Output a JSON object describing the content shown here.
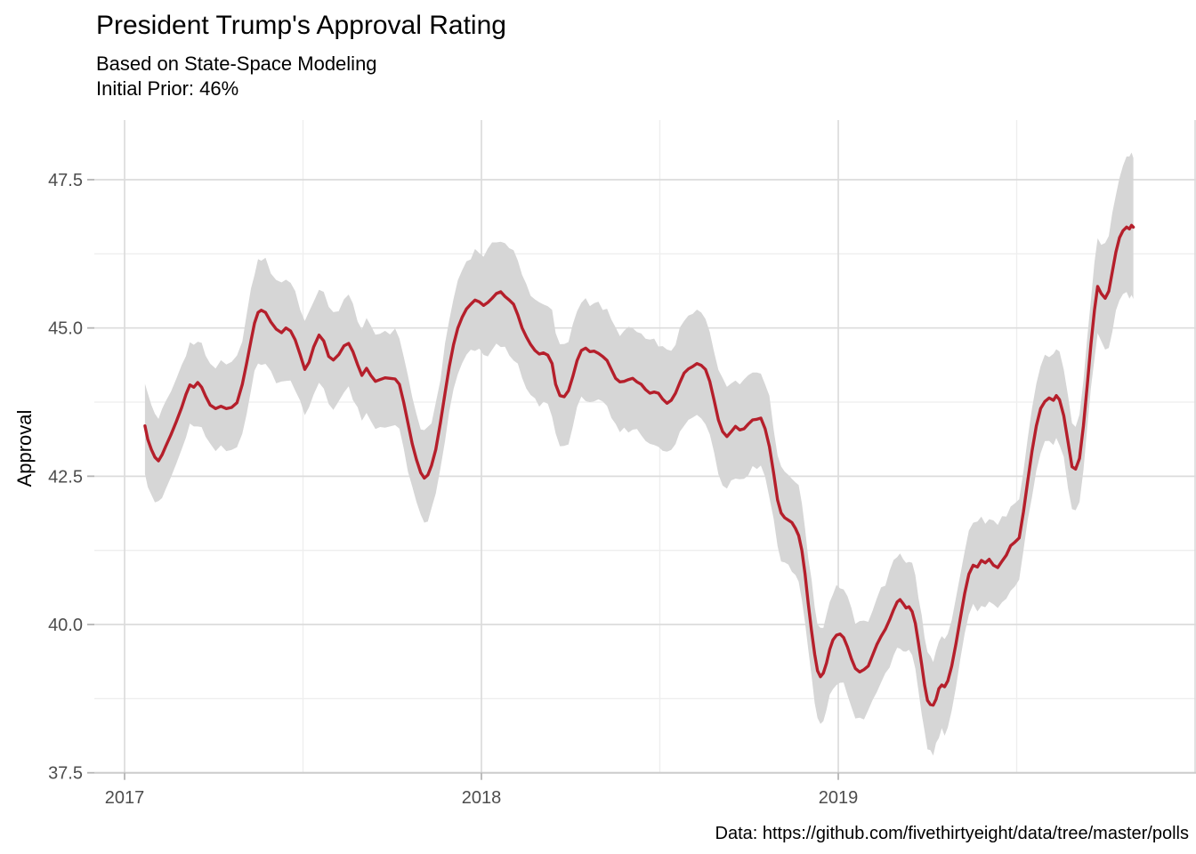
{
  "header": {
    "title": "President Trump's Approval Rating",
    "subtitle_line1": "Based on State-Space Modeling",
    "subtitle_line2": "Initial Prior: 46%"
  },
  "caption": "Data: https://github.com/fivethirtyeight/data/tree/master/polls",
  "colors": {
    "line": "#b51f2b",
    "ribbon": "#d6d6d6",
    "grid_major": "#dcdcdc",
    "grid_minor": "#eeeeee",
    "axis_line": "#cccccc",
    "tick_mark": "#b5b5b5",
    "tick_label": "#4d4d4d",
    "text": "#000000"
  },
  "chart_data": {
    "type": "line",
    "title": "President Trump's Approval Rating",
    "subtitle": "Based on State-Space Modeling — Initial Prior: 46%",
    "xlabel": "",
    "ylabel": "Approval",
    "grid": true,
    "legend": false,
    "x_axis": {
      "tick_labels": [
        "2017",
        "2018",
        "2019"
      ],
      "tick_years": [
        2017,
        2018,
        2019
      ],
      "grid_major_years": [
        2017,
        2018,
        2019,
        2020
      ],
      "grid_minor_years": [
        2017.5,
        2018.5,
        2019.5
      ],
      "range_shown": [
        2016.915,
        2020.003
      ]
    },
    "y_axis": {
      "tick_labels": [
        "37.5",
        "40.0",
        "42.5",
        "45.0",
        "47.5"
      ],
      "ticks": [
        37.5,
        40.0,
        42.5,
        45.0,
        47.5
      ],
      "grid_minor": [
        38.75,
        41.25,
        43.75,
        46.25
      ],
      "range_shown": [
        37.5,
        48.5
      ]
    },
    "series": [
      {
        "name": "posterior-mean-approval",
        "points": [
          [
            2017.057,
            43.35
          ],
          [
            2017.065,
            43.12
          ],
          [
            2017.075,
            42.95
          ],
          [
            2017.085,
            42.82
          ],
          [
            2017.095,
            42.76
          ],
          [
            2017.105,
            42.86
          ],
          [
            2017.115,
            43.0
          ],
          [
            2017.13,
            43.2
          ],
          [
            2017.145,
            43.42
          ],
          [
            2017.16,
            43.66
          ],
          [
            2017.172,
            43.88
          ],
          [
            2017.183,
            44.04
          ],
          [
            2017.194,
            44.0
          ],
          [
            2017.205,
            44.08
          ],
          [
            2017.216,
            44.0
          ],
          [
            2017.227,
            43.85
          ],
          [
            2017.24,
            43.7
          ],
          [
            2017.255,
            43.64
          ],
          [
            2017.27,
            43.68
          ],
          [
            2017.285,
            43.64
          ],
          [
            2017.3,
            43.66
          ],
          [
            2017.315,
            43.74
          ],
          [
            2017.33,
            44.05
          ],
          [
            2017.342,
            44.4
          ],
          [
            2017.354,
            44.78
          ],
          [
            2017.364,
            45.08
          ],
          [
            2017.374,
            45.26
          ],
          [
            2017.383,
            45.3
          ],
          [
            2017.395,
            45.26
          ],
          [
            2017.41,
            45.1
          ],
          [
            2017.425,
            44.98
          ],
          [
            2017.44,
            44.92
          ],
          [
            2017.452,
            45.0
          ],
          [
            2017.465,
            44.95
          ],
          [
            2017.478,
            44.8
          ],
          [
            2017.492,
            44.55
          ],
          [
            2017.505,
            44.3
          ],
          [
            2017.517,
            44.42
          ],
          [
            2017.53,
            44.68
          ],
          [
            2017.545,
            44.88
          ],
          [
            2017.558,
            44.78
          ],
          [
            2017.572,
            44.52
          ],
          [
            2017.585,
            44.46
          ],
          [
            2017.6,
            44.55
          ],
          [
            2017.615,
            44.7
          ],
          [
            2017.628,
            44.74
          ],
          [
            2017.64,
            44.6
          ],
          [
            2017.653,
            44.38
          ],
          [
            2017.665,
            44.2
          ],
          [
            2017.678,
            44.32
          ],
          [
            2017.69,
            44.2
          ],
          [
            2017.703,
            44.1
          ],
          [
            2017.716,
            44.13
          ],
          [
            2017.73,
            44.16
          ],
          [
            2017.744,
            44.15
          ],
          [
            2017.758,
            44.14
          ],
          [
            2017.77,
            44.05
          ],
          [
            2017.782,
            43.75
          ],
          [
            2017.794,
            43.4
          ],
          [
            2017.806,
            43.05
          ],
          [
            2017.818,
            42.78
          ],
          [
            2017.83,
            42.56
          ],
          [
            2017.84,
            42.47
          ],
          [
            2017.85,
            42.52
          ],
          [
            2017.86,
            42.68
          ],
          [
            2017.872,
            42.95
          ],
          [
            2017.885,
            43.4
          ],
          [
            2017.898,
            43.9
          ],
          [
            2017.91,
            44.35
          ],
          [
            2017.922,
            44.72
          ],
          [
            2017.934,
            45.0
          ],
          [
            2017.946,
            45.18
          ],
          [
            2017.958,
            45.32
          ],
          [
            2017.97,
            45.4
          ],
          [
            2017.982,
            45.47
          ],
          [
            2017.994,
            45.44
          ],
          [
            2018.006,
            45.38
          ],
          [
            2018.018,
            45.43
          ],
          [
            2018.03,
            45.5
          ],
          [
            2018.042,
            45.58
          ],
          [
            2018.054,
            45.61
          ],
          [
            2018.066,
            45.53
          ],
          [
            2018.078,
            45.47
          ],
          [
            2018.09,
            45.4
          ],
          [
            2018.102,
            45.22
          ],
          [
            2018.114,
            45.0
          ],
          [
            2018.126,
            44.85
          ],
          [
            2018.138,
            44.72
          ],
          [
            2018.15,
            44.62
          ],
          [
            2018.162,
            44.56
          ],
          [
            2018.174,
            44.58
          ],
          [
            2018.186,
            44.54
          ],
          [
            2018.198,
            44.4
          ],
          [
            2018.208,
            44.05
          ],
          [
            2018.22,
            43.86
          ],
          [
            2018.232,
            43.84
          ],
          [
            2018.244,
            43.94
          ],
          [
            2018.256,
            44.18
          ],
          [
            2018.268,
            44.45
          ],
          [
            2018.28,
            44.62
          ],
          [
            2018.292,
            44.66
          ],
          [
            2018.304,
            44.6
          ],
          [
            2018.316,
            44.61
          ],
          [
            2018.328,
            44.57
          ],
          [
            2018.34,
            44.52
          ],
          [
            2018.352,
            44.45
          ],
          [
            2018.364,
            44.3
          ],
          [
            2018.376,
            44.15
          ],
          [
            2018.388,
            44.09
          ],
          [
            2018.4,
            44.1
          ],
          [
            2018.412,
            44.13
          ],
          [
            2018.424,
            44.15
          ],
          [
            2018.436,
            44.09
          ],
          [
            2018.448,
            44.05
          ],
          [
            2018.46,
            43.96
          ],
          [
            2018.472,
            43.9
          ],
          [
            2018.484,
            43.92
          ],
          [
            2018.496,
            43.9
          ],
          [
            2018.508,
            43.8
          ],
          [
            2018.52,
            43.73
          ],
          [
            2018.532,
            43.78
          ],
          [
            2018.544,
            43.9
          ],
          [
            2018.556,
            44.08
          ],
          [
            2018.568,
            44.24
          ],
          [
            2018.58,
            44.31
          ],
          [
            2018.592,
            44.35
          ],
          [
            2018.604,
            44.4
          ],
          [
            2018.616,
            44.37
          ],
          [
            2018.628,
            44.3
          ],
          [
            2018.64,
            44.1
          ],
          [
            2018.652,
            43.78
          ],
          [
            2018.664,
            43.45
          ],
          [
            2018.676,
            43.25
          ],
          [
            2018.688,
            43.17
          ],
          [
            2018.7,
            43.25
          ],
          [
            2018.712,
            43.34
          ],
          [
            2018.724,
            43.28
          ],
          [
            2018.736,
            43.3
          ],
          [
            2018.748,
            43.38
          ],
          [
            2018.76,
            43.45
          ],
          [
            2018.772,
            43.46
          ],
          [
            2018.783,
            43.48
          ],
          [
            2018.795,
            43.3
          ],
          [
            2018.807,
            43.0
          ],
          [
            2018.819,
            42.55
          ],
          [
            2018.83,
            42.1
          ],
          [
            2018.84,
            41.88
          ],
          [
            2018.85,
            41.8
          ],
          [
            2018.86,
            41.76
          ],
          [
            2018.87,
            41.72
          ],
          [
            2018.88,
            41.62
          ],
          [
            2018.889,
            41.5
          ],
          [
            2018.898,
            41.25
          ],
          [
            2018.907,
            40.85
          ],
          [
            2018.916,
            40.35
          ],
          [
            2018.925,
            39.9
          ],
          [
            2018.934,
            39.5
          ],
          [
            2018.942,
            39.22
          ],
          [
            2018.95,
            39.12
          ],
          [
            2018.958,
            39.18
          ],
          [
            2018.967,
            39.35
          ],
          [
            2018.976,
            39.58
          ],
          [
            2018.985,
            39.74
          ],
          [
            2018.995,
            39.82
          ],
          [
            2019.005,
            39.84
          ],
          [
            2019.015,
            39.78
          ],
          [
            2019.026,
            39.62
          ],
          [
            2019.037,
            39.42
          ],
          [
            2019.048,
            39.26
          ],
          [
            2019.06,
            39.2
          ],
          [
            2019.072,
            39.24
          ],
          [
            2019.084,
            39.3
          ],
          [
            2019.096,
            39.48
          ],
          [
            2019.108,
            39.66
          ],
          [
            2019.12,
            39.8
          ],
          [
            2019.132,
            39.92
          ],
          [
            2019.144,
            40.08
          ],
          [
            2019.155,
            40.25
          ],
          [
            2019.165,
            40.38
          ],
          [
            2019.173,
            40.42
          ],
          [
            2019.182,
            40.35
          ],
          [
            2019.19,
            40.28
          ],
          [
            2019.198,
            40.3
          ],
          [
            2019.207,
            40.22
          ],
          [
            2019.216,
            40.02
          ],
          [
            2019.225,
            39.68
          ],
          [
            2019.234,
            39.32
          ],
          [
            2019.242,
            38.98
          ],
          [
            2019.25,
            38.72
          ],
          [
            2019.258,
            38.65
          ],
          [
            2019.266,
            38.64
          ],
          [
            2019.274,
            38.74
          ],
          [
            2019.282,
            38.92
          ],
          [
            2019.29,
            38.98
          ],
          [
            2019.298,
            38.95
          ],
          [
            2019.307,
            39.05
          ],
          [
            2019.318,
            39.3
          ],
          [
            2019.33,
            39.68
          ],
          [
            2019.342,
            40.1
          ],
          [
            2019.354,
            40.52
          ],
          [
            2019.366,
            40.85
          ],
          [
            2019.378,
            41.0
          ],
          [
            2019.39,
            40.97
          ],
          [
            2019.401,
            41.08
          ],
          [
            2019.412,
            41.04
          ],
          [
            2019.423,
            41.1
          ],
          [
            2019.435,
            41.0
          ],
          [
            2019.447,
            40.96
          ],
          [
            2019.459,
            41.07
          ],
          [
            2019.471,
            41.17
          ],
          [
            2019.483,
            41.33
          ],
          [
            2019.495,
            41.39
          ],
          [
            2019.507,
            41.46
          ],
          [
            2019.519,
            41.9
          ],
          [
            2019.531,
            42.42
          ],
          [
            2019.543,
            42.92
          ],
          [
            2019.555,
            43.35
          ],
          [
            2019.567,
            43.64
          ],
          [
            2019.579,
            43.76
          ],
          [
            2019.591,
            43.82
          ],
          [
            2019.603,
            43.78
          ],
          [
            2019.611,
            43.86
          ],
          [
            2019.62,
            43.79
          ],
          [
            2019.632,
            43.52
          ],
          [
            2019.644,
            43.08
          ],
          [
            2019.655,
            42.66
          ],
          [
            2019.665,
            42.62
          ],
          [
            2019.676,
            42.8
          ],
          [
            2019.687,
            43.35
          ],
          [
            2019.698,
            44.05
          ],
          [
            2019.708,
            44.72
          ],
          [
            2019.718,
            45.3
          ],
          [
            2019.727,
            45.7
          ],
          [
            2019.737,
            45.58
          ],
          [
            2019.748,
            45.5
          ],
          [
            2019.758,
            45.62
          ],
          [
            2019.768,
            45.95
          ],
          [
            2019.778,
            46.28
          ],
          [
            2019.788,
            46.52
          ],
          [
            2019.798,
            46.64
          ],
          [
            2019.808,
            46.7
          ],
          [
            2019.816,
            46.67
          ],
          [
            2019.822,
            46.73
          ],
          [
            2019.827,
            46.7
          ]
        ]
      }
    ],
    "band": {
      "name": "credible-interval-ribbon",
      "half_width_nodes": [
        [
          2017.057,
          0.75
        ],
        [
          2017.2,
          0.7
        ],
        [
          2017.3,
          0.72
        ],
        [
          2017.38,
          0.88
        ],
        [
          2017.5,
          0.8
        ],
        [
          2017.65,
          0.78
        ],
        [
          2017.77,
          0.8
        ],
        [
          2017.84,
          0.75
        ],
        [
          2017.95,
          0.8
        ],
        [
          2018.05,
          0.9
        ],
        [
          2018.2,
          0.85
        ],
        [
          2018.35,
          0.82
        ],
        [
          2018.5,
          0.85
        ],
        [
          2018.62,
          0.88
        ],
        [
          2018.75,
          0.82
        ],
        [
          2018.85,
          0.78
        ],
        [
          2018.95,
          0.82
        ],
        [
          2019.05,
          0.8
        ],
        [
          2019.16,
          0.78
        ],
        [
          2019.25,
          0.8
        ],
        [
          2019.35,
          0.72
        ],
        [
          2019.45,
          0.7
        ],
        [
          2019.55,
          0.72
        ],
        [
          2019.62,
          0.75
        ],
        [
          2019.66,
          0.72
        ],
        [
          2019.72,
          0.8
        ],
        [
          2019.78,
          1.0
        ],
        [
          2019.827,
          1.22
        ]
      ]
    }
  }
}
